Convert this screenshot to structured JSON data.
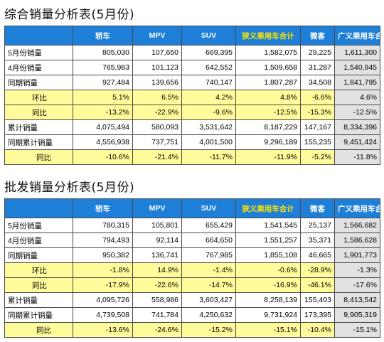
{
  "table1": {
    "title": "综合销量分析表(5月份)",
    "headers": [
      "",
      "轿车",
      "MPV",
      "SUV",
      "狭义乘用车合计",
      "微客",
      "广义乘用车合计"
    ],
    "rows": [
      {
        "label": "5月份销量",
        "values": [
          "805,030",
          "107,650",
          "669,395",
          "1,582,075",
          "29,225",
          "1,611,300"
        ],
        "style": "white"
      },
      {
        "label": "4月份销量",
        "values": [
          "765,983",
          "101,123",
          "642,552",
          "1,509,658",
          "31,287",
          "1,540,945"
        ],
        "style": "white"
      },
      {
        "label": "同期销量",
        "values": [
          "927,484",
          "139,656",
          "740,147",
          "1,807,287",
          "34,508",
          "1,841,795"
        ],
        "style": "white"
      },
      {
        "label": "环比",
        "values": [
          "5.1%",
          "6.5%",
          "4.2%",
          "4.8%",
          "-6.6%",
          "4.6%"
        ],
        "style": "yellow",
        "indent": "indent"
      },
      {
        "label": "同比",
        "values": [
          "-13.2%",
          "-22.9%",
          "-9.6%",
          "-12.5%",
          "-15.3%",
          "-12.5%"
        ],
        "style": "yellow",
        "indent": "indent"
      },
      {
        "label": "累计销量",
        "values": [
          "4,075,494",
          "580,093",
          "3,531,642",
          "8,187,229",
          "147,167",
          "8,334,396"
        ],
        "style": "white"
      },
      {
        "label": "同期累计销量",
        "values": [
          "4,556,938",
          "737,751",
          "4,001,500",
          "9,296,189",
          "155,235",
          "9,451,424"
        ],
        "style": "white"
      },
      {
        "label": "同比",
        "values": [
          "-10.6%",
          "-21.4%",
          "-11.7%",
          "-11.9%",
          "-5.2%",
          "-11.8%"
        ],
        "style": "yellow",
        "indent": "indent2"
      }
    ]
  },
  "table2": {
    "title": "批发销量分析表(5月份)",
    "headers": [
      "",
      "轿车",
      "MPV",
      "SUV",
      "狭义乘用车合计",
      "微客",
      "广义乘用车合计"
    ],
    "rows": [
      {
        "label": "5月份销量",
        "values": [
          "780,315",
          "105,801",
          "655,429",
          "1,541,545",
          "25,137",
          "1,566,682"
        ],
        "style": "white"
      },
      {
        "label": "4月份销量",
        "values": [
          "794,493",
          "92,114",
          "664,650",
          "1,551,257",
          "35,371",
          "1,586,628"
        ],
        "style": "white"
      },
      {
        "label": "同期销量",
        "values": [
          "950,382",
          "136,741",
          "767,985",
          "1,855,108",
          "46,665",
          "1,901,773"
        ],
        "style": "white"
      },
      {
        "label": "环比",
        "values": [
          "-1.8%",
          "14.9%",
          "-1.4%",
          "-0.6%",
          "-28.9%",
          "-1.3%"
        ],
        "style": "yellow",
        "indent": "indent"
      },
      {
        "label": "同比",
        "values": [
          "-17.9%",
          "-22.6%",
          "-14.7%",
          "-16.9%",
          "-46.1%",
          "-17.6%"
        ],
        "style": "yellow",
        "indent": "indent"
      },
      {
        "label": "累计销量",
        "values": [
          "4,095,726",
          "558,986",
          "3,603,427",
          "8,258,139",
          "155,403",
          "8,413,542"
        ],
        "style": "white"
      },
      {
        "label": "同期累计销量",
        "values": [
          "4,739,508",
          "741,784",
          "4,250,632",
          "9,731,924",
          "173,395",
          "9,905,319"
        ],
        "style": "white"
      },
      {
        "label": "同比",
        "values": [
          "-13.6%",
          "-24.6%",
          "-15.2%",
          "-15.1%",
          "-10.4%",
          "-15.1%"
        ],
        "style": "yellow",
        "indent": "indent2"
      }
    ]
  },
  "colors": {
    "header_bg": "#1e7fd8",
    "header_text": "#ffffff",
    "header_highlight_text": "#ffe400",
    "yellow_row": "#fffb9a",
    "gray_column": "#e2e2e2"
  }
}
